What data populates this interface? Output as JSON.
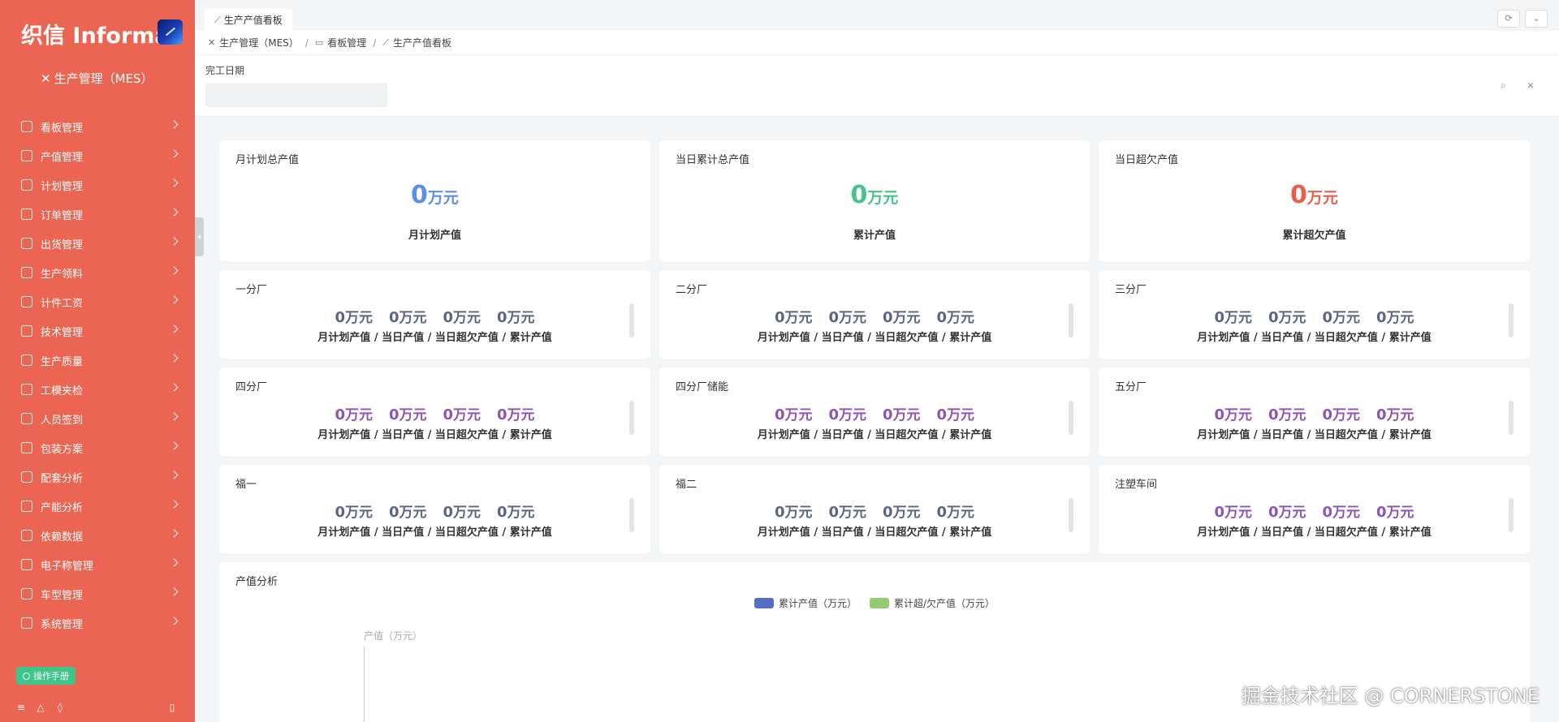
{
  "brand": {
    "name": "织信 Informat"
  },
  "app": {
    "name": "生产管理（MES）"
  },
  "menu": [
    {
      "label": "看板管理"
    },
    {
      "label": "产值管理"
    },
    {
      "label": "计划管理"
    },
    {
      "label": "订单管理"
    },
    {
      "label": "出货管理"
    },
    {
      "label": "生产领料"
    },
    {
      "label": "计件工资"
    },
    {
      "label": "技术管理"
    },
    {
      "label": "生产质量"
    },
    {
      "label": "工模夹检"
    },
    {
      "label": "人员签到"
    },
    {
      "label": "包装方案"
    },
    {
      "label": "配套分析"
    },
    {
      "label": "产能分析"
    },
    {
      "label": "依赖数据"
    },
    {
      "label": "电子称管理"
    },
    {
      "label": "车型管理"
    },
    {
      "label": "系统管理"
    }
  ],
  "help_button": "操作手册",
  "tab": {
    "label": "生产产值看板"
  },
  "breadcrumb": [
    "生产管理（MES）",
    "看板管理",
    "生产产值看板"
  ],
  "filter": {
    "label": "完工日期"
  },
  "summary": [
    {
      "title": "月计划总产值",
      "value": "0",
      "unit": "万元",
      "sub": "月计划产值",
      "color": "#5b8ee6"
    },
    {
      "title": "当日累计总产值",
      "value": "0",
      "unit": "万元",
      "sub": "累计产值",
      "color": "#48c28a"
    },
    {
      "title": "当日超欠产值",
      "value": "0",
      "unit": "万元",
      "sub": "累计超欠产值",
      "color": "#e8604c"
    }
  ],
  "unit": "万元",
  "sub_label": "月计划产值 / 当日产值 / 当日超欠产值 / 累计产值",
  "factories": [
    {
      "name": "一分厂",
      "values": [
        "0",
        "0",
        "0",
        "0"
      ],
      "color": "#5b6683"
    },
    {
      "name": "二分厂",
      "values": [
        "0",
        "0",
        "0",
        "0"
      ],
      "color": "#5b6683"
    },
    {
      "name": "三分厂",
      "values": [
        "0",
        "0",
        "0",
        "0"
      ],
      "color": "#5b6683"
    },
    {
      "name": "四分厂",
      "values": [
        "0",
        "0",
        "0",
        "0"
      ],
      "color": "#8e55b5"
    },
    {
      "name": "四分厂储能",
      "values": [
        "0",
        "0",
        "0",
        "0"
      ],
      "color": "#8e55b5"
    },
    {
      "name": "五分厂",
      "values": [
        "0",
        "0",
        "0",
        "0"
      ],
      "color": "#8e55b5"
    },
    {
      "name": "福一",
      "values": [
        "0",
        "0",
        "0",
        "0"
      ],
      "color": "#5b6683"
    },
    {
      "name": "福二",
      "values": [
        "0",
        "0",
        "0",
        "0"
      ],
      "color": "#5b6683"
    },
    {
      "name": "注塑车间",
      "values": [
        "0",
        "0",
        "0",
        "0"
      ],
      "color": "#8e55b5"
    }
  ],
  "analysis": {
    "title": "产值分析",
    "legend": [
      {
        "label": "累计产值（万元）",
        "color": "#5470c6"
      },
      {
        "label": "累计超/欠产值（万元）",
        "color": "#91cc75"
      }
    ],
    "y_name": "产值（万元）"
  },
  "chart_data": {
    "type": "bar",
    "title": "产值分析",
    "ylabel": "产值（万元）",
    "series": [
      {
        "name": "累计产值（万元）",
        "values": []
      },
      {
        "name": "累计超/欠产值（万元）",
        "values": []
      }
    ],
    "legend": "top-center"
  },
  "watermark": "掘金技术社区 @ CORNERSTONE"
}
